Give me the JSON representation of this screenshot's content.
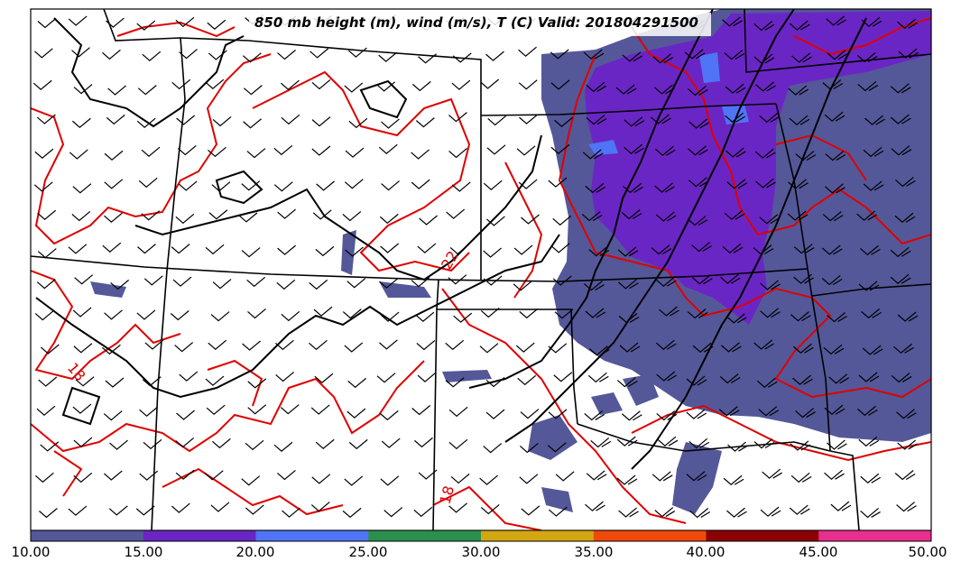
{
  "title": "850 mb height (m), wind (m/s), T (C) Valid: 201804291500",
  "colorbar": {
    "ticks": [
      "10.00",
      "15.00",
      "20.00",
      "25.00",
      "30.00",
      "35.00",
      "40.00",
      "45.00",
      "50.00"
    ],
    "colors": [
      "#545899",
      "#6a26c4",
      "#4f74f5",
      "#2b8f4e",
      "#d3a712",
      "#f04a0a",
      "#8b0000",
      "#e92e8f"
    ]
  },
  "contour_labels": [
    "18",
    "22",
    "18"
  ],
  "colors": {
    "wind_fill_low": "#545899",
    "wind_fill_mid": "#6a26c4",
    "wind_fill_high": "#4f74f5",
    "temperature_contour": "#e00000",
    "height_contour": "#000000",
    "state_borders": "#000000"
  }
}
